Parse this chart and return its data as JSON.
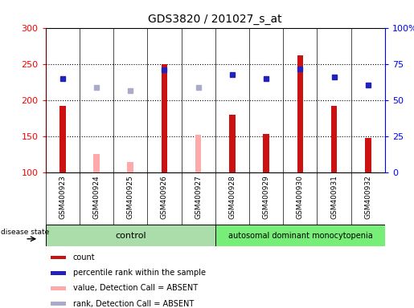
{
  "title": "GDS3820 / 201027_s_at",
  "samples": [
    "GSM400923",
    "GSM400924",
    "GSM400925",
    "GSM400926",
    "GSM400927",
    "GSM400928",
    "GSM400929",
    "GSM400930",
    "GSM400931",
    "GSM400932"
  ],
  "red_values": [
    192,
    null,
    null,
    250,
    null,
    180,
    153,
    262,
    192,
    148
  ],
  "pink_values": [
    null,
    125,
    115,
    null,
    152,
    null,
    null,
    null,
    null,
    null
  ],
  "blue_values": [
    230,
    null,
    null,
    242,
    null,
    235,
    230,
    243,
    232,
    221
  ],
  "lightblue_values": [
    null,
    218,
    213,
    null,
    218,
    null,
    null,
    null,
    null,
    null
  ],
  "ylim": [
    100,
    300
  ],
  "yticks": [
    100,
    150,
    200,
    250,
    300
  ],
  "ytick_labels_right": [
    "0",
    "25",
    "50",
    "75",
    "100%"
  ],
  "control_label": "control",
  "disease_label": "autosomal dominant monocytopenia",
  "disease_state_label": "disease state",
  "legend_labels": [
    "count",
    "percentile rank within the sample",
    "value, Detection Call = ABSENT",
    "rank, Detection Call = ABSENT"
  ],
  "bar_width": 0.18,
  "red_color": "#cc1111",
  "pink_color": "#ffaaaa",
  "blue_color": "#2222bb",
  "lightblue_color": "#aaaacc",
  "plot_bg": "#ffffff",
  "label_bg": "#cccccc",
  "control_bg": "#aaddaa",
  "disease_bg": "#77ee77"
}
